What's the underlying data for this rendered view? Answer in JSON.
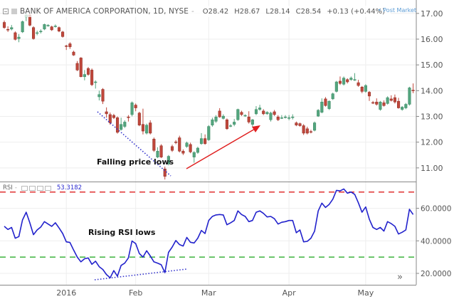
{
  "header": {
    "symbol_title": "BANK OF AMERICA CORPORATION, 1D, NYSE",
    "separator": "-",
    "open": "O28.42",
    "high": "H28.67",
    "low": "L28.14",
    "close": "C28.54",
    "change": "+0.13 (+0.44%)",
    "post_market": "• Post Market"
  },
  "rsi_header": {
    "label": "RSI",
    "separator": "-",
    "value": "53.3182"
  },
  "annotations": {
    "price": "Falling price lows",
    "rsi": "Rising RSI lows"
  },
  "colors": {
    "up": "#53a57e",
    "down": "#c0473b",
    "rsi_line": "#2222cc",
    "overbought": "#e03030",
    "oversold": "#3cb33c",
    "trendline": "#3333cc",
    "arrow": "#e02020",
    "post_market": "#5b9bd5"
  },
  "icons": {
    "scroll_right": "»"
  },
  "chart_data": [
    {
      "type": "candlestick",
      "price_axis": {
        "ticks": [
          "17.00",
          "16.00",
          "15.00",
          "14.00",
          "13.00",
          "12.00",
          "11.00"
        ],
        "range": [
          10.47,
          17.52
        ]
      },
      "x_axis": {
        "ticks": [
          {
            "label": "2016",
            "date": "2016-01-04"
          },
          {
            "label": "Feb",
            "date": "2016-02-01"
          },
          {
            "label": "Mar",
            "date": "2016-03-01"
          },
          {
            "label": "Apr",
            "date": "2016-04-01"
          },
          {
            "label": "May",
            "date": "2016-05-02"
          }
        ]
      },
      "grid": true,
      "candles_fields": [
        "date",
        "open",
        "high",
        "low",
        "close"
      ],
      "candles": [
        [
          "2015-12-08",
          16.65,
          16.72,
          16.4,
          16.45
        ],
        [
          "2015-12-09",
          16.38,
          16.5,
          16.28,
          16.36
        ],
        [
          "2015-12-10",
          16.39,
          16.55,
          16.34,
          16.45
        ],
        [
          "2015-12-11",
          16.25,
          16.3,
          15.95,
          15.99
        ],
        [
          "2015-12-14",
          16.02,
          16.2,
          15.88,
          16.08
        ],
        [
          "2015-12-15",
          16.28,
          16.72,
          16.24,
          16.68
        ],
        [
          "2015-12-16",
          16.86,
          17.0,
          16.7,
          16.94
        ],
        [
          "2015-12-17",
          16.94,
          17.0,
          16.5,
          16.54
        ],
        [
          "2015-12-18",
          16.45,
          16.5,
          15.98,
          16.02
        ],
        [
          "2015-12-21",
          16.23,
          16.33,
          16.15,
          16.25
        ],
        [
          "2015-12-22",
          16.3,
          16.38,
          16.22,
          16.31
        ],
        [
          "2015-12-23",
          16.39,
          16.6,
          16.35,
          16.57
        ],
        [
          "2015-12-24",
          16.53,
          16.58,
          16.48,
          16.54
        ],
        [
          "2015-12-28",
          16.48,
          16.52,
          16.32,
          16.36
        ],
        [
          "2015-12-29",
          16.5,
          16.57,
          16.45,
          16.51
        ],
        [
          "2015-12-30",
          16.45,
          16.49,
          16.27,
          16.31
        ],
        [
          "2015-12-31",
          16.28,
          16.32,
          16.06,
          16.1
        ],
        [
          "2016-01-04",
          15.74,
          15.78,
          15.58,
          15.73
        ],
        [
          "2016-01-05",
          15.82,
          15.88,
          15.62,
          15.7
        ],
        [
          "2016-01-06",
          15.5,
          15.55,
          15.35,
          15.38
        ],
        [
          "2016-01-07",
          15.06,
          15.15,
          14.76,
          14.8
        ],
        [
          "2016-01-08",
          15.27,
          15.3,
          14.52,
          14.54
        ],
        [
          "2016-01-11",
          14.54,
          14.8,
          14.4,
          14.63
        ],
        [
          "2016-01-12",
          14.86,
          14.92,
          14.58,
          14.63
        ],
        [
          "2016-01-13",
          14.8,
          14.86,
          14.18,
          14.23
        ],
        [
          "2016-01-14",
          14.33,
          14.4,
          14.08,
          14.34
        ],
        [
          "2016-01-15",
          13.76,
          14.0,
          13.62,
          13.85
        ],
        [
          "2016-01-19",
          14.05,
          14.1,
          13.48,
          13.59
        ],
        [
          "2016-01-20",
          13.18,
          13.35,
          12.95,
          13.1
        ],
        [
          "2016-01-21",
          13.07,
          13.15,
          12.68,
          12.75
        ],
        [
          "2016-01-22",
          13.04,
          13.1,
          12.9,
          12.95
        ],
        [
          "2016-01-25",
          12.95,
          13.0,
          12.33,
          12.38
        ],
        [
          "2016-01-26",
          12.49,
          12.95,
          12.45,
          12.69
        ],
        [
          "2016-01-27",
          12.61,
          12.85,
          12.55,
          12.78
        ],
        [
          "2016-01-28",
          12.98,
          13.05,
          12.8,
          12.95
        ],
        [
          "2016-01-29",
          13.07,
          13.58,
          13.0,
          13.53
        ],
        [
          "2016-02-01",
          13.44,
          13.5,
          13.2,
          13.33
        ],
        [
          "2016-02-02",
          13.13,
          13.18,
          12.62,
          12.66
        ],
        [
          "2016-02-03",
          12.69,
          13.3,
          12.3,
          12.43
        ],
        [
          "2016-02-04",
          12.35,
          12.72,
          12.3,
          12.66
        ],
        [
          "2016-02-05",
          12.75,
          12.85,
          12.3,
          12.35
        ],
        [
          "2016-02-08",
          12.12,
          12.18,
          11.62,
          11.68
        ],
        [
          "2016-02-09",
          11.42,
          11.8,
          11.38,
          11.65
        ],
        [
          "2016-02-10",
          11.86,
          11.92,
          11.38,
          11.42
        ],
        [
          "2016-02-11",
          10.96,
          11.05,
          10.55,
          10.67
        ],
        [
          "2016-02-12",
          11.16,
          11.5,
          11.1,
          11.45
        ],
        [
          "2016-02-16",
          11.83,
          11.9,
          11.62,
          11.68
        ],
        [
          "2016-02-17",
          12.01,
          12.08,
          11.92,
          12.0
        ],
        [
          "2016-02-18",
          12.17,
          12.25,
          11.6,
          11.65
        ],
        [
          "2016-02-19",
          11.65,
          11.72,
          11.5,
          11.57
        ],
        [
          "2016-02-22",
          11.83,
          12.02,
          11.78,
          11.97
        ],
        [
          "2016-02-23",
          11.91,
          11.98,
          11.57,
          11.62
        ],
        [
          "2016-02-24",
          11.42,
          11.65,
          11.2,
          11.6
        ],
        [
          "2016-02-25",
          11.6,
          11.82,
          11.55,
          11.77
        ],
        [
          "2016-02-26",
          11.94,
          12.35,
          11.9,
          12.14
        ],
        [
          "2016-02-29",
          12.14,
          12.3,
          11.9,
          11.94
        ],
        [
          "2016-03-01",
          12.09,
          12.66,
          12.05,
          12.61
        ],
        [
          "2016-03-02",
          12.66,
          12.95,
          12.6,
          12.87
        ],
        [
          "2016-03-03",
          12.81,
          13.05,
          12.75,
          12.98
        ],
        [
          "2016-03-04",
          13.21,
          13.32,
          12.95,
          12.98
        ],
        [
          "2016-03-07",
          12.92,
          13.08,
          12.88,
          13.01
        ],
        [
          "2016-03-08",
          12.87,
          12.92,
          12.48,
          12.52
        ],
        [
          "2016-03-09",
          12.62,
          12.7,
          12.58,
          12.64
        ],
        [
          "2016-03-10",
          12.69,
          12.9,
          12.62,
          12.78
        ],
        [
          "2016-03-11",
          12.87,
          13.3,
          12.83,
          13.27
        ],
        [
          "2016-03-14",
          13.16,
          13.22,
          13.02,
          13.07
        ],
        [
          "2016-03-15",
          13.02,
          13.08,
          12.98,
          13.04
        ],
        [
          "2016-03-16",
          12.98,
          13.2,
          12.72,
          12.78
        ],
        [
          "2016-03-17",
          12.69,
          12.9,
          12.6,
          12.87
        ],
        [
          "2016-03-18",
          13.1,
          13.4,
          13.05,
          13.27
        ],
        [
          "2016-03-21",
          13.27,
          13.45,
          13.22,
          13.33
        ],
        [
          "2016-03-22",
          13.21,
          13.28,
          13.05,
          13.1
        ],
        [
          "2016-03-23",
          13.1,
          13.2,
          13.06,
          13.16
        ],
        [
          "2016-03-24",
          12.87,
          13.18,
          12.8,
          13.13
        ],
        [
          "2016-03-28",
          13.18,
          13.25,
          13.02,
          13.07
        ],
        [
          "2016-03-29",
          12.98,
          13.05,
          12.82,
          12.87
        ],
        [
          "2016-03-30",
          12.94,
          13.05,
          12.9,
          12.95
        ],
        [
          "2016-03-31",
          12.97,
          13.05,
          12.92,
          12.98
        ],
        [
          "2016-04-01",
          12.94,
          13.05,
          12.85,
          12.95
        ],
        [
          "2016-04-04",
          12.97,
          13.08,
          12.88,
          12.98
        ],
        [
          "2016-04-05",
          12.75,
          12.8,
          12.62,
          12.66
        ],
        [
          "2016-04-06",
          12.72,
          12.76,
          12.6,
          12.64
        ],
        [
          "2016-04-07",
          12.64,
          12.7,
          12.28,
          12.35
        ],
        [
          "2016-04-08",
          12.52,
          12.6,
          12.3,
          12.35
        ],
        [
          "2016-04-11",
          12.41,
          12.48,
          12.34,
          12.4
        ],
        [
          "2016-04-12",
          12.46,
          12.8,
          12.42,
          12.75
        ],
        [
          "2016-04-13",
          13.01,
          13.28,
          12.98,
          13.24
        ],
        [
          "2016-04-14",
          13.16,
          13.7,
          13.12,
          13.56
        ],
        [
          "2016-04-15",
          13.68,
          13.75,
          13.38,
          13.42
        ],
        [
          "2016-04-18",
          13.3,
          13.62,
          13.25,
          13.59
        ],
        [
          "2016-04-19",
          13.68,
          13.92,
          13.64,
          13.88
        ],
        [
          "2016-04-20",
          13.97,
          14.38,
          13.93,
          14.34
        ],
        [
          "2016-04-21",
          14.37,
          14.55,
          14.22,
          14.28
        ],
        [
          "2016-04-22",
          14.25,
          14.55,
          14.2,
          14.49
        ],
        [
          "2016-04-25",
          14.43,
          14.48,
          14.28,
          14.34
        ],
        [
          "2016-04-26",
          14.43,
          14.55,
          14.38,
          14.49
        ],
        [
          "2016-04-27",
          14.42,
          14.68,
          14.38,
          14.43
        ],
        [
          "2016-04-28",
          14.31,
          14.42,
          14.15,
          14.2
        ],
        [
          "2016-04-29",
          14.14,
          14.18,
          13.9,
          13.97
        ],
        [
          "2016-05-02",
          13.97,
          14.25,
          13.92,
          14.2
        ],
        [
          "2016-05-03",
          13.94,
          13.98,
          13.6,
          13.79
        ],
        [
          "2016-05-04",
          13.54,
          13.6,
          13.48,
          13.53
        ],
        [
          "2016-05-05",
          13.56,
          13.7,
          13.42,
          13.47
        ],
        [
          "2016-05-06",
          13.27,
          13.6,
          13.22,
          13.56
        ],
        [
          "2016-05-09",
          13.53,
          13.62,
          13.38,
          13.42
        ],
        [
          "2016-05-10",
          13.5,
          13.78,
          13.46,
          13.73
        ],
        [
          "2016-05-11",
          13.68,
          13.82,
          13.58,
          13.62
        ],
        [
          "2016-05-12",
          13.73,
          13.85,
          13.5,
          13.56
        ],
        [
          "2016-05-13",
          13.59,
          13.72,
          13.3,
          13.33
        ],
        [
          "2016-05-16",
          13.27,
          13.4,
          13.22,
          13.36
        ],
        [
          "2016-05-17",
          13.33,
          13.52,
          13.28,
          13.47
        ],
        [
          "2016-05-18",
          13.47,
          14.15,
          13.42,
          14.11
        ],
        [
          "2016-05-19",
          14.02,
          14.28,
          13.9,
          14.0
        ]
      ]
    },
    {
      "type": "line",
      "name": "RSI",
      "y_axis": {
        "ticks": [
          "60.0000",
          "40.0000",
          "20.0000"
        ],
        "range": [
          13,
          76
        ]
      },
      "bands": {
        "overbought": 70,
        "oversold": 30
      },
      "values": [
        48.9,
        47.0,
        48.2,
        41.6,
        42.6,
        52.8,
        57.6,
        51.1,
        43.8,
        46.7,
        48.5,
        51.8,
        50.3,
        48.9,
        51.1,
        47.9,
        44.5,
        39.4,
        39.0,
        34.3,
        30.0,
        27.1,
        29.0,
        29.5,
        25.6,
        27.5,
        24.1,
        22.4,
        19.3,
        17.3,
        21.7,
        18.3,
        24.9,
        26.3,
        29.5,
        39.9,
        38.3,
        32.2,
        30.0,
        33.9,
        30.7,
        27.1,
        26.3,
        25.3,
        20.5,
        32.9,
        36.2,
        40.2,
        37.7,
        36.8,
        42.1,
        39.1,
        38.7,
        41.6,
        46.4,
        44.5,
        52.5,
        55.0,
        55.9,
        56.2,
        55.9,
        49.9,
        51.1,
        52.5,
        58.4,
        56.2,
        55.0,
        51.8,
        52.5,
        57.6,
        58.4,
        56.9,
        54.7,
        55.0,
        53.6,
        50.3,
        51.4,
        51.8,
        52.5,
        52.5,
        45.0,
        46.7,
        39.4,
        39.7,
        41.6,
        46.0,
        58.4,
        63.2,
        60.5,
        62.4,
        65.6,
        71.0,
        70.7,
        71.9,
        69.3,
        70.0,
        68.5,
        63.4,
        57.6,
        60.8,
        53.3,
        48.2,
        47.0,
        48.2,
        46.0,
        51.8,
        50.6,
        48.9,
        44.2,
        45.3,
        46.7,
        59.4,
        56.2
      ]
    }
  ]
}
